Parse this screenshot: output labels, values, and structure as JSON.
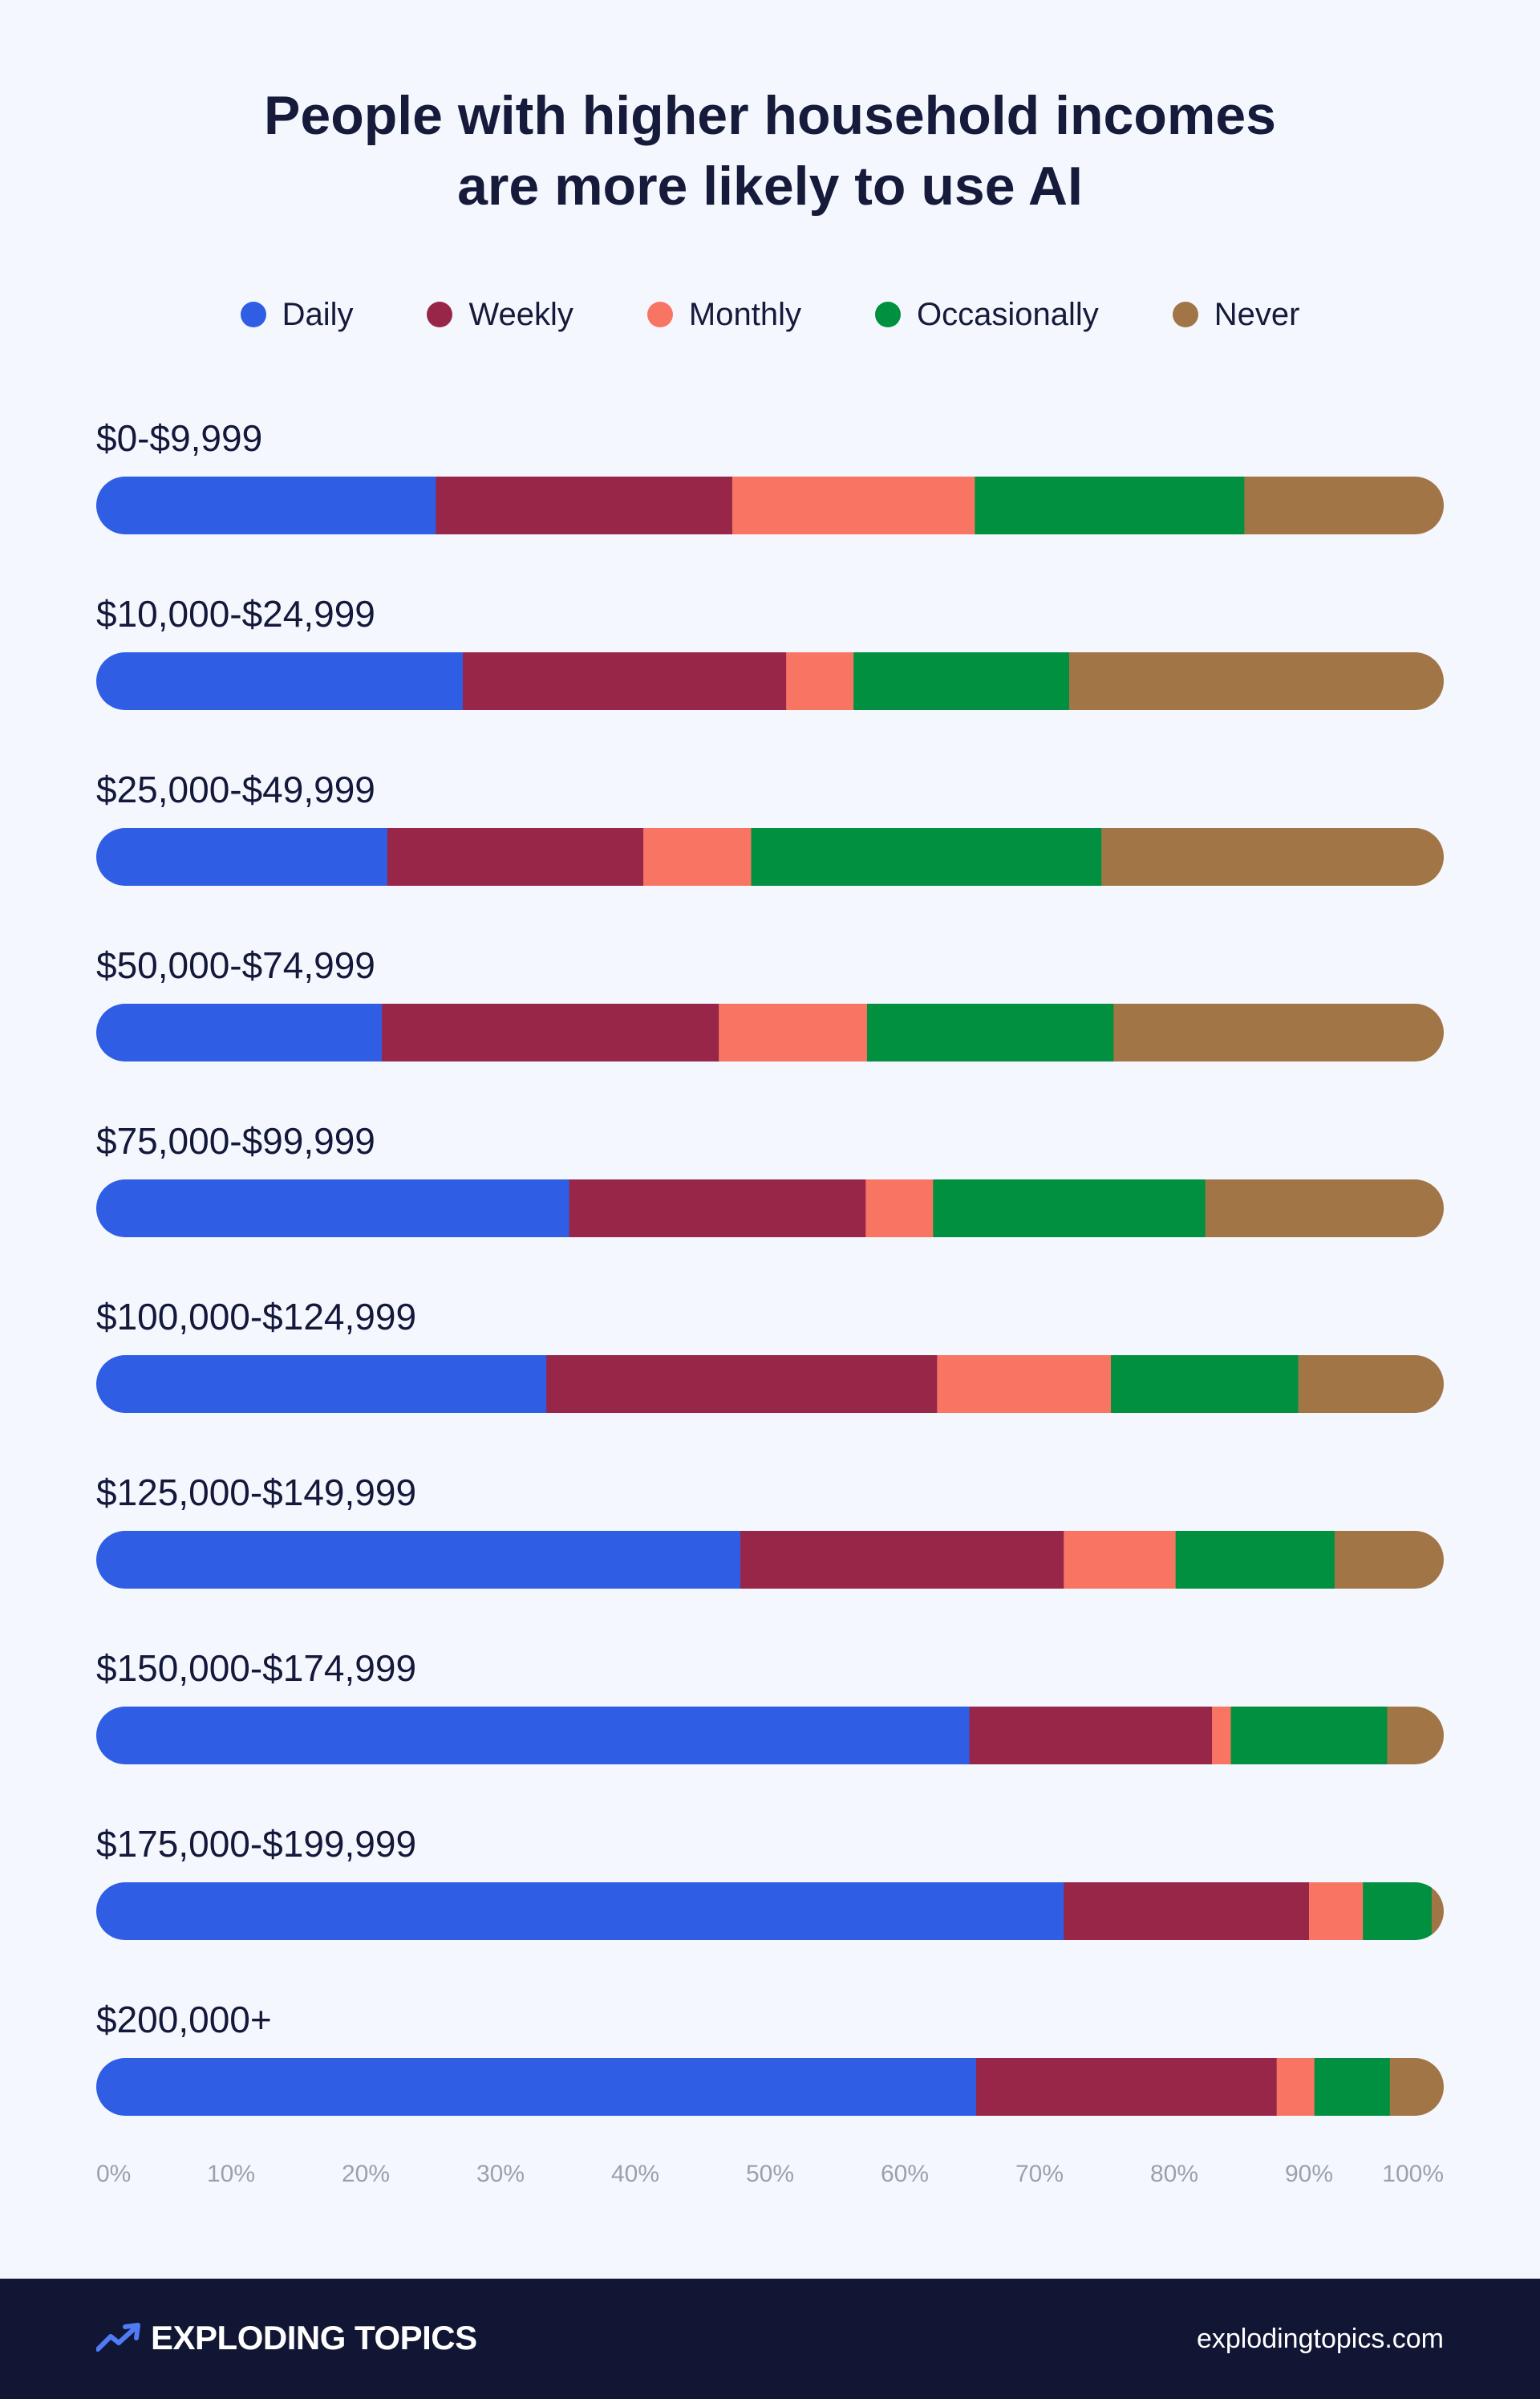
{
  "header": {
    "title_line1": "People with higher household incomes",
    "title_line2": "are more likely to use AI"
  },
  "legend": [
    {
      "label": "Daily",
      "color": "#2f5ee4"
    },
    {
      "label": "Weekly",
      "color": "#982648"
    },
    {
      "label": "Monthly",
      "color": "#f97563"
    },
    {
      "label": "Occasionally",
      "color": "#01903f"
    },
    {
      "label": "Never",
      "color": "#a27547"
    }
  ],
  "chart_data": {
    "type": "bar",
    "orientation": "horizontal",
    "stacked": true,
    "title": "People with higher household incomes are more likely to use AI",
    "categories": [
      "$0-$9,999",
      "$10,000-$24,999",
      "$25,000-$49,999",
      "$50,000-$74,999",
      "$75,000-$99,999",
      "$100,000-$124,999",
      "$125,000-$149,999",
      "$150,000-$174,999",
      "$175,000-$199,999",
      "$200,000+"
    ],
    "series": [
      {
        "name": "Daily",
        "color": "#2f5ee4",
        "values": [
          25.2,
          27.2,
          21.6,
          21.2,
          35.1,
          33.4,
          47.8,
          64.8,
          71.8,
          65.3
        ]
      },
      {
        "name": "Weekly",
        "color": "#982648",
        "values": [
          22.0,
          24.0,
          19.0,
          25.0,
          22.0,
          29.0,
          24.0,
          18.0,
          18.2,
          22.3
        ]
      },
      {
        "name": "Monthly",
        "color": "#f97563",
        "values": [
          18.0,
          5.0,
          8.0,
          11.0,
          5.0,
          12.9,
          8.3,
          1.4,
          4.0,
          2.8
        ]
      },
      {
        "name": "Occasionally",
        "color": "#01903f",
        "values": [
          20.0,
          16.0,
          26.0,
          18.3,
          20.2,
          13.9,
          11.8,
          11.6,
          5.1,
          5.6
        ]
      },
      {
        "name": "Never",
        "color": "#a27547",
        "values": [
          14.8,
          27.8,
          25.4,
          24.5,
          17.7,
          10.8,
          8.1,
          4.2,
          0.9,
          4.0
        ]
      }
    ],
    "x_ticks": [
      "0%",
      "10%",
      "20%",
      "30%",
      "40%",
      "50%",
      "60%",
      "70%",
      "80%",
      "90%",
      "100%"
    ],
    "xlim": [
      0,
      100
    ],
    "grid": false,
    "legend_position": "top-center"
  },
  "footer": {
    "brand": "EXPLODING TOPICS",
    "site": "explodingtopics.com",
    "icon": "trend-arrow-icon"
  }
}
